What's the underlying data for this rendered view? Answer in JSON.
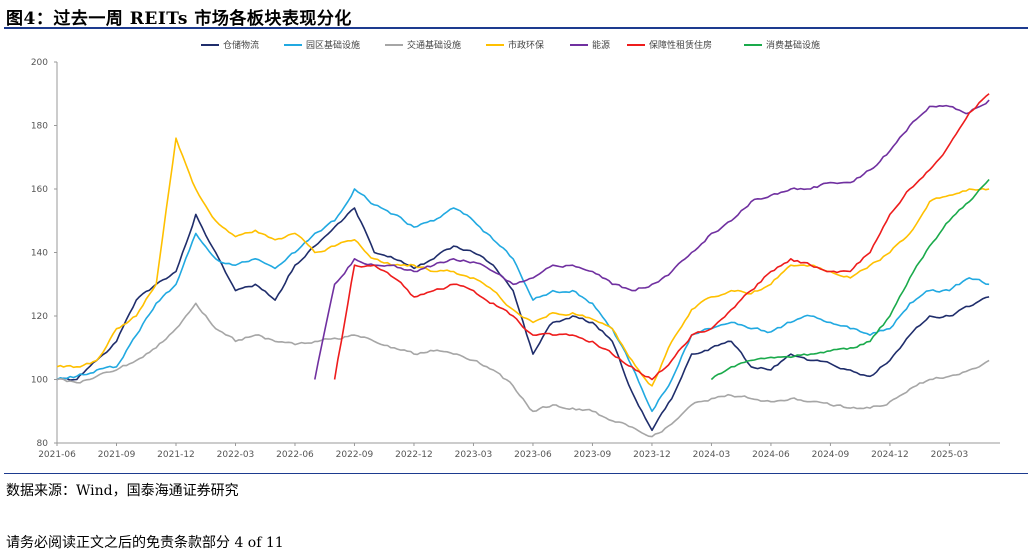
{
  "figure": {
    "title": "图4：过去一周 REITs 市场各板块表现分化"
  },
  "source_text": "数据来源：Wind，国泰海通证券研究",
  "footer_text": "请务必阅读正文之后的免责条款部分 4 of 11",
  "chart_data": {
    "type": "line",
    "title": "",
    "xlabel": "",
    "ylabel": "",
    "ylim": [
      80,
      200
    ],
    "yticks": [
      80,
      100,
      120,
      140,
      160,
      180,
      200
    ],
    "x_range": [
      "2021-06",
      "2025-05"
    ],
    "xtick_labels": [
      "2021-06",
      "2021-09",
      "2021-12",
      "2022-03",
      "2022-06",
      "2022-09",
      "2022-12",
      "2023-03",
      "2023-06",
      "2023-09",
      "2023-12",
      "2024-03",
      "2024-06",
      "2024-09",
      "2024-12",
      "2025-03"
    ],
    "grid": false,
    "legend": "top",
    "series": [
      {
        "name": "仓储物流",
        "color": "#1f2d6b",
        "points": [
          [
            "2021-06",
            100
          ],
          [
            "2021-07",
            100
          ],
          [
            "2021-08",
            106
          ],
          [
            "2021-09",
            112
          ],
          [
            "2021-10",
            125
          ],
          [
            "2021-11",
            130
          ],
          [
            "2021-12",
            134
          ],
          [
            "2022-01",
            152
          ],
          [
            "2022-02",
            140
          ],
          [
            "2022-03",
            128
          ],
          [
            "2022-04",
            130
          ],
          [
            "2022-05",
            125
          ],
          [
            "2022-06",
            136
          ],
          [
            "2022-07",
            142
          ],
          [
            "2022-08",
            148
          ],
          [
            "2022-09",
            154
          ],
          [
            "2022-10",
            140
          ],
          [
            "2022-11",
            138
          ],
          [
            "2022-12",
            135
          ],
          [
            "2023-01",
            138
          ],
          [
            "2023-02",
            142
          ],
          [
            "2023-03",
            140
          ],
          [
            "2023-04",
            136
          ],
          [
            "2023-05",
            128
          ],
          [
            "2023-06",
            108
          ],
          [
            "2023-07",
            118
          ],
          [
            "2023-08",
            120
          ],
          [
            "2023-09",
            118
          ],
          [
            "2023-10",
            112
          ],
          [
            "2023-11",
            96
          ],
          [
            "2023-12",
            84
          ],
          [
            "2024-01",
            94
          ],
          [
            "2024-02",
            108
          ],
          [
            "2024-03",
            110
          ],
          [
            "2024-04",
            112
          ],
          [
            "2024-05",
            104
          ],
          [
            "2024-06",
            103
          ],
          [
            "2024-07",
            108
          ],
          [
            "2024-08",
            106
          ],
          [
            "2024-09",
            105
          ],
          [
            "2024-10",
            103
          ],
          [
            "2024-11",
            101
          ],
          [
            "2024-12",
            106
          ],
          [
            "2025-01",
            114
          ],
          [
            "2025-02",
            120
          ],
          [
            "2025-03",
            120
          ],
          [
            "2025-04",
            123
          ],
          [
            "2025-05",
            126
          ]
        ]
      },
      {
        "name": "园区基础设施",
        "color": "#21a9e1",
        "points": [
          [
            "2021-06",
            100
          ],
          [
            "2021-07",
            101
          ],
          [
            "2021-08",
            103
          ],
          [
            "2021-09",
            104
          ],
          [
            "2021-10",
            114
          ],
          [
            "2021-11",
            124
          ],
          [
            "2021-12",
            130
          ],
          [
            "2022-01",
            146
          ],
          [
            "2022-02",
            138
          ],
          [
            "2022-03",
            136
          ],
          [
            "2022-04",
            138
          ],
          [
            "2022-05",
            135
          ],
          [
            "2022-06",
            140
          ],
          [
            "2022-07",
            146
          ],
          [
            "2022-08",
            150
          ],
          [
            "2022-09",
            160
          ],
          [
            "2022-10",
            155
          ],
          [
            "2022-11",
            152
          ],
          [
            "2022-12",
            148
          ],
          [
            "2023-01",
            150
          ],
          [
            "2023-02",
            154
          ],
          [
            "2023-03",
            150
          ],
          [
            "2023-04",
            144
          ],
          [
            "2023-05",
            138
          ],
          [
            "2023-06",
            125
          ],
          [
            "2023-07",
            128
          ],
          [
            "2023-08",
            128
          ],
          [
            "2023-09",
            124
          ],
          [
            "2023-10",
            116
          ],
          [
            "2023-11",
            104
          ],
          [
            "2023-12",
            90
          ],
          [
            "2024-01",
            100
          ],
          [
            "2024-02",
            114
          ],
          [
            "2024-03",
            116
          ],
          [
            "2024-04",
            118
          ],
          [
            "2024-05",
            116
          ],
          [
            "2024-06",
            115
          ],
          [
            "2024-07",
            118
          ],
          [
            "2024-08",
            120
          ],
          [
            "2024-09",
            118
          ],
          [
            "2024-10",
            116
          ],
          [
            "2024-11",
            114
          ],
          [
            "2024-12",
            116
          ],
          [
            "2025-01",
            124
          ],
          [
            "2025-02",
            128
          ],
          [
            "2025-03",
            128
          ],
          [
            "2025-04",
            132
          ],
          [
            "2025-05",
            130
          ]
        ]
      },
      {
        "name": "交通基础设施",
        "color": "#a6a6a6",
        "points": [
          [
            "2021-06",
            100
          ],
          [
            "2021-07",
            99
          ],
          [
            "2021-08",
            101
          ],
          [
            "2021-09",
            103
          ],
          [
            "2021-10",
            106
          ],
          [
            "2021-11",
            110
          ],
          [
            "2021-12",
            116
          ],
          [
            "2022-01",
            124
          ],
          [
            "2022-02",
            116
          ],
          [
            "2022-03",
            112
          ],
          [
            "2022-04",
            114
          ],
          [
            "2022-05",
            112
          ],
          [
            "2022-06",
            111
          ],
          [
            "2022-07",
            112
          ],
          [
            "2022-08",
            113
          ],
          [
            "2022-09",
            114
          ],
          [
            "2022-10",
            112
          ],
          [
            "2022-11",
            110
          ],
          [
            "2022-12",
            108
          ],
          [
            "2023-01",
            109
          ],
          [
            "2023-02",
            108
          ],
          [
            "2023-03",
            106
          ],
          [
            "2023-04",
            103
          ],
          [
            "2023-05",
            98
          ],
          [
            "2023-06",
            90
          ],
          [
            "2023-07",
            92
          ],
          [
            "2023-08",
            91
          ],
          [
            "2023-09",
            90
          ],
          [
            "2023-10",
            87
          ],
          [
            "2023-11",
            85
          ],
          [
            "2023-12",
            82
          ],
          [
            "2024-01",
            86
          ],
          [
            "2024-02",
            92
          ],
          [
            "2024-03",
            94
          ],
          [
            "2024-04",
            95
          ],
          [
            "2024-05",
            94
          ],
          [
            "2024-06",
            93
          ],
          [
            "2024-07",
            94
          ],
          [
            "2024-08",
            93
          ],
          [
            "2024-09",
            92
          ],
          [
            "2024-10",
            91
          ],
          [
            "2024-11",
            91
          ],
          [
            "2024-12",
            93
          ],
          [
            "2025-01",
            97
          ],
          [
            "2025-02",
            100
          ],
          [
            "2025-03",
            101
          ],
          [
            "2025-04",
            103
          ],
          [
            "2025-05",
            106
          ]
        ]
      },
      {
        "name": "市政环保",
        "color": "#ffc000",
        "points": [
          [
            "2021-06",
            104
          ],
          [
            "2021-07",
            104
          ],
          [
            "2021-08",
            106
          ],
          [
            "2021-09",
            116
          ],
          [
            "2021-10",
            120
          ],
          [
            "2021-11",
            130
          ],
          [
            "2021-12",
            176
          ],
          [
            "2022-01",
            160
          ],
          [
            "2022-02",
            150
          ],
          [
            "2022-03",
            145
          ],
          [
            "2022-04",
            147
          ],
          [
            "2022-05",
            144
          ],
          [
            "2022-06",
            146
          ],
          [
            "2022-07",
            140
          ],
          [
            "2022-08",
            142
          ],
          [
            "2022-09",
            144
          ],
          [
            "2022-10",
            138
          ],
          [
            "2022-11",
            136
          ],
          [
            "2022-12",
            136
          ],
          [
            "2023-01",
            134
          ],
          [
            "2023-02",
            134
          ],
          [
            "2023-03",
            132
          ],
          [
            "2023-04",
            128
          ],
          [
            "2023-05",
            122
          ],
          [
            "2023-06",
            118
          ],
          [
            "2023-07",
            121
          ],
          [
            "2023-08",
            121
          ],
          [
            "2023-09",
            119
          ],
          [
            "2023-10",
            116
          ],
          [
            "2023-11",
            106
          ],
          [
            "2023-12",
            98
          ],
          [
            "2024-01",
            112
          ],
          [
            "2024-02",
            122
          ],
          [
            "2024-03",
            126
          ],
          [
            "2024-04",
            128
          ],
          [
            "2024-05",
            127
          ],
          [
            "2024-06",
            130
          ],
          [
            "2024-07",
            136
          ],
          [
            "2024-08",
            136
          ],
          [
            "2024-09",
            134
          ],
          [
            "2024-10",
            132
          ],
          [
            "2024-11",
            136
          ],
          [
            "2024-12",
            140
          ],
          [
            "2025-01",
            146
          ],
          [
            "2025-02",
            156
          ],
          [
            "2025-03",
            158
          ],
          [
            "2025-04",
            160
          ],
          [
            "2025-05",
            160
          ]
        ]
      },
      {
        "name": "能源",
        "color": "#7030a0",
        "points": [
          [
            "2022-07",
            100
          ],
          [
            "2022-08",
            130
          ],
          [
            "2022-09",
            138
          ],
          [
            "2022-10",
            136
          ],
          [
            "2022-11",
            136
          ],
          [
            "2022-12",
            134
          ],
          [
            "2023-01",
            136
          ],
          [
            "2023-02",
            138
          ],
          [
            "2023-03",
            137
          ],
          [
            "2023-04",
            134
          ],
          [
            "2023-05",
            130
          ],
          [
            "2023-06",
            132
          ],
          [
            "2023-07",
            136
          ],
          [
            "2023-08",
            136
          ],
          [
            "2023-09",
            134
          ],
          [
            "2023-10",
            130
          ],
          [
            "2023-11",
            128
          ],
          [
            "2023-12",
            130
          ],
          [
            "2024-01",
            134
          ],
          [
            "2024-02",
            140
          ],
          [
            "2024-03",
            146
          ],
          [
            "2024-04",
            150
          ],
          [
            "2024-05",
            156
          ],
          [
            "2024-06",
            158
          ],
          [
            "2024-07",
            160
          ],
          [
            "2024-08",
            160
          ],
          [
            "2024-09",
            162
          ],
          [
            "2024-10",
            162
          ],
          [
            "2024-11",
            166
          ],
          [
            "2024-12",
            172
          ],
          [
            "2025-01",
            180
          ],
          [
            "2025-02",
            186
          ],
          [
            "2025-03",
            186
          ],
          [
            "2025-04",
            184
          ],
          [
            "2025-05",
            188
          ]
        ]
      },
      {
        "name": "保障性租赁住房",
        "color": "#ee1c1c",
        "points": [
          [
            "2022-08",
            100
          ],
          [
            "2022-09",
            136
          ],
          [
            "2022-10",
            136
          ],
          [
            "2022-11",
            132
          ],
          [
            "2022-12",
            126
          ],
          [
            "2023-01",
            128
          ],
          [
            "2023-02",
            130
          ],
          [
            "2023-03",
            128
          ],
          [
            "2023-04",
            124
          ],
          [
            "2023-05",
            120
          ],
          [
            "2023-06",
            114
          ],
          [
            "2023-07",
            114
          ],
          [
            "2023-08",
            114
          ],
          [
            "2023-09",
            112
          ],
          [
            "2023-10",
            108
          ],
          [
            "2023-11",
            104
          ],
          [
            "2023-12",
            100
          ],
          [
            "2024-01",
            106
          ],
          [
            "2024-02",
            114
          ],
          [
            "2024-03",
            116
          ],
          [
            "2024-04",
            122
          ],
          [
            "2024-05",
            128
          ],
          [
            "2024-06",
            134
          ],
          [
            "2024-07",
            138
          ],
          [
            "2024-08",
            136
          ],
          [
            "2024-09",
            134
          ],
          [
            "2024-10",
            134
          ],
          [
            "2024-11",
            140
          ],
          [
            "2024-12",
            152
          ],
          [
            "2025-01",
            160
          ],
          [
            "2025-02",
            166
          ],
          [
            "2025-03",
            174
          ],
          [
            "2025-04",
            184
          ],
          [
            "2025-05",
            190
          ]
        ]
      },
      {
        "name": "消费基础设施",
        "color": "#1aaa4b",
        "points": [
          [
            "2024-03",
            100
          ],
          [
            "2024-04",
            104
          ],
          [
            "2024-05",
            106
          ],
          [
            "2024-06",
            107
          ],
          [
            "2024-07",
            107
          ],
          [
            "2024-08",
            108
          ],
          [
            "2024-09",
            109
          ],
          [
            "2024-10",
            110
          ],
          [
            "2024-11",
            112
          ],
          [
            "2024-12",
            120
          ],
          [
            "2025-01",
            132
          ],
          [
            "2025-02",
            142
          ],
          [
            "2025-03",
            150
          ],
          [
            "2025-04",
            156
          ],
          [
            "2025-05",
            163
          ]
        ]
      }
    ]
  }
}
